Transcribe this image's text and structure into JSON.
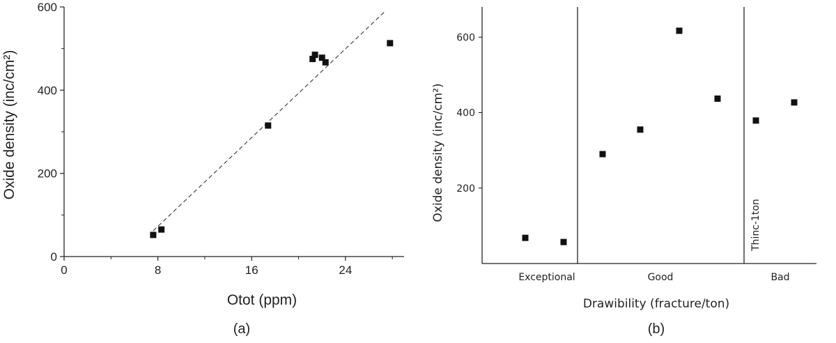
{
  "chart_data": [
    {
      "type": "scatter",
      "caption": "(a)",
      "xlabel": "Otot (ppm)",
      "ylabel": "Oxide density (inc/cm²)",
      "xlim": [
        0,
        29
      ],
      "ylim": [
        0,
        600
      ],
      "x_ticks": [
        0,
        8,
        16,
        24
      ],
      "y_ticks": [
        0,
        200,
        400,
        600
      ],
      "grid": false,
      "series": [
        {
          "marker": "square",
          "points": [
            [
              7.6,
              52
            ],
            [
              8.3,
              65
            ],
            [
              17.4,
              315
            ],
            [
              21.2,
              475
            ],
            [
              21.4,
              485
            ],
            [
              22.0,
              478
            ],
            [
              22.3,
              467
            ],
            [
              27.8,
              513
            ]
          ]
        }
      ],
      "trendline": {
        "style": "dashed",
        "from": [
          7.6,
          62
        ],
        "to": [
          27.4,
          590
        ]
      }
    },
    {
      "type": "scatter",
      "caption": "(b)",
      "xlabel": "Drawibility (fracture/ton)",
      "ylabel": "Oxide density (inc/cm²)",
      "ylim": [
        0,
        680
      ],
      "y_ticks": [
        200,
        400,
        600
      ],
      "grid": false,
      "categories": [
        "Exceptional",
        "Good",
        "Bad"
      ],
      "annotation": "Thinc-1ton",
      "series": [
        {
          "marker": "square",
          "points": [
            [
              "Exceptional",
              68
            ],
            [
              "Exceptional",
              57
            ],
            [
              "Good",
              290
            ],
            [
              "Good",
              355
            ],
            [
              "Good",
              617
            ],
            [
              "Good",
              437
            ],
            [
              "Bad",
              379
            ],
            [
              "Bad",
              427
            ]
          ]
        }
      ]
    }
  ]
}
